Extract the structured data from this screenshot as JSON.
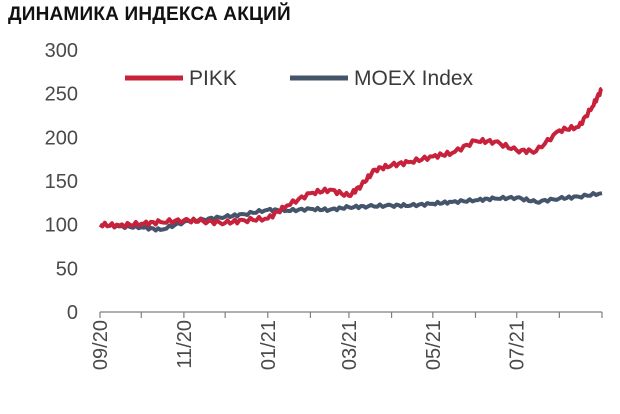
{
  "chart_data": {
    "type": "line",
    "title": "ДИНАМИКА ИНДЕКСА АКЦИЙ",
    "xlabel": "",
    "ylabel": "",
    "ylim": [
      0,
      300
    ],
    "y_ticks": [
      "0",
      "50",
      "100",
      "150",
      "200",
      "250",
      "300"
    ],
    "x_tick_labels": [
      "09/20",
      "11/20",
      "01/21",
      "03/21",
      "05/21",
      "07/21"
    ],
    "legend_position": "top",
    "grid": false,
    "x": [
      "2020-09",
      "2020-10",
      "2020-10",
      "2020-11",
      "2020-11",
      "2020-12",
      "2020-12",
      "2021-01",
      "2021-01",
      "2021-02",
      "2021-02",
      "2021-03",
      "2021-03",
      "2021-04",
      "2021-04",
      "2021-05",
      "2021-05",
      "2021-06",
      "2021-06",
      "2021-07",
      "2021-07",
      "2021-08",
      "2021-08",
      "2021-09"
    ],
    "series": [
      {
        "name": "PIKK",
        "color": "#c8213b",
        "x": [
          "2020-09-01",
          "2020-09-15",
          "2020-10-01",
          "2020-10-15",
          "2020-11-01",
          "2020-11-15",
          "2020-12-01",
          "2020-12-15",
          "2021-01-01",
          "2021-01-15",
          "2021-02-01",
          "2021-02-15",
          "2021-03-01",
          "2021-03-10",
          "2021-03-20",
          "2021-04-01",
          "2021-04-15",
          "2021-05-01",
          "2021-05-15",
          "2021-06-01",
          "2021-06-15",
          "2021-07-01",
          "2021-07-15",
          "2021-08-01",
          "2021-08-15",
          "2021-08-25",
          "2021-09-01"
        ],
        "values": [
          100,
          99,
          101,
          103,
          105,
          104,
          102,
          105,
          107,
          122,
          136,
          140,
          133,
          145,
          163,
          168,
          172,
          178,
          182,
          196,
          195,
          185,
          184,
          208,
          212,
          235,
          256
        ]
      },
      {
        "name": "MOEX Index",
        "color": "#44546a",
        "x": [
          "2020-09-01",
          "2020-09-15",
          "2020-10-01",
          "2020-10-15",
          "2020-11-01",
          "2020-11-15",
          "2020-12-01",
          "2020-12-15",
          "2021-01-01",
          "2021-01-15",
          "2021-02-01",
          "2021-02-15",
          "2021-03-01",
          "2021-03-15",
          "2021-04-01",
          "2021-04-15",
          "2021-05-01",
          "2021-05-15",
          "2021-06-01",
          "2021-06-15",
          "2021-07-01",
          "2021-07-15",
          "2021-08-01",
          "2021-08-15",
          "2021-09-01"
        ],
        "values": [
          100,
          98,
          97,
          94,
          103,
          106,
          109,
          112,
          117,
          116,
          118,
          117,
          120,
          121,
          122,
          122,
          124,
          126,
          128,
          130,
          131,
          126,
          130,
          132,
          136
        ]
      }
    ]
  }
}
